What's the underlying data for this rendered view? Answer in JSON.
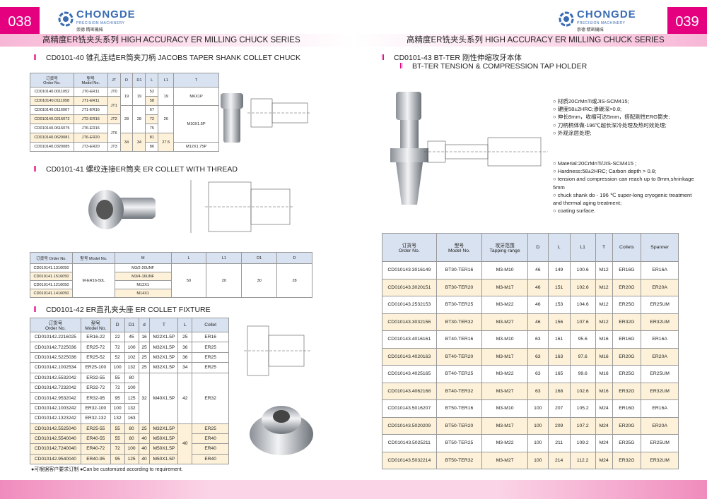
{
  "left_page": {
    "page_number": "038",
    "logo": {
      "brand": "CHONGDE",
      "tagline": "PRECISION MACHINERY",
      "chinese": "崇德 精密機械"
    },
    "series_title": "高精度ER铣夹头系列  HIGH ACCURACY ER MILLING CHUCK SERIES",
    "sections": [
      {
        "title": "CD0101-40  锥孔连结ER筒夹刀柄  JACOBS TAPER SHANK COLLET CHUCK",
        "table": {
          "headers": [
            "订货号\nOrder No.",
            "型号\nModel No.",
            "JT",
            "D",
            "D1",
            "L",
            "L1",
            "T"
          ],
          "rows": [
            [
              "CD010140.0011052",
              "JT0-ER11",
              "JT0",
              "19",
              "19",
              "52",
              "19",
              "M6X1P"
            ],
            [
              "CD010140.0111058",
              "JT1-ER11",
              "JT1",
              "58"
            ],
            [
              "CD010140.0116067",
              "JT1-ER16",
              "28",
              "28",
              "67",
              "26",
              "M10X1.5P"
            ],
            [
              "CD010140.0216072",
              "JT2-ER16",
              "JT2",
              "72"
            ],
            [
              "CD010140.0616075",
              "JT6-ER16",
              "JT6",
              "75"
            ],
            [
              "CD010140.0620081",
              "JT6-ER20",
              "34",
              "34",
              "81",
              "27.5"
            ],
            [
              "CD010140.0320085",
              "JT3-ER20",
              "JT3",
              "86",
              "M12X1.75P"
            ]
          ]
        }
      },
      {
        "title": "CD0101-41  螺纹连接ER筒夹  ER COLLET WITH THREAD",
        "table": {
          "headers": [
            "订货号 Order No.",
            "型号 Model No.",
            "M",
            "L",
            "L1",
            "D1",
            "D"
          ],
          "rows": [
            [
              "CD010141.1316050",
              "M-ER16-50L",
              "M3/2-20UNF",
              "50",
              "20",
              "30",
              "28"
            ],
            [
              "CD010141.1516050",
              "M3/4-16UNF"
            ],
            [
              "CD010141.1216050",
              "M12X1"
            ],
            [
              "CD010141.1416050",
              "M14X1"
            ]
          ]
        }
      },
      {
        "title": "CD0101-42  ER直孔夹头座  ER COLLET FIXTURE",
        "table": {
          "headers": [
            "订货号\nOrder No.",
            "型号\nModel No.",
            "D",
            "D1",
            "d",
            "T",
            "L",
            "Collet"
          ],
          "rows": [
            [
              "CD010142.2216025",
              "ER16-22",
              "22",
              "45",
              "16",
              "M22X1.5P",
              "25",
              "ER16"
            ],
            [
              "CD010142.7225036",
              "ER25-72",
              "72",
              "100",
              "25",
              "M32X1.5P",
              "36",
              "ER25"
            ],
            [
              "CD010142.5225036",
              "ER25-52",
              "52",
              "102",
              "25",
              "M32X1.5P",
              "36",
              "ER25"
            ],
            [
              "CD010142.1002534",
              "ER25-100",
              "100",
              "132",
              "25",
              "M32X1.5P",
              "34",
              "ER25"
            ],
            [
              "CD010142.5532042",
              "ER32-55",
              "55",
              "80",
              "32",
              "M40X1.5P",
              "42",
              "ER32"
            ],
            [
              "CD010142.7232042",
              "ER32-72",
              "72",
              "100"
            ],
            [
              "CD010142.9532042",
              "ER32-95",
              "95",
              "125"
            ],
            [
              "CD010142.1003242",
              "ER32-100",
              "100",
              "132"
            ],
            [
              "CD010142.1323242",
              "ER32-132",
              "132",
              "163"
            ],
            [
              "CD010142.5525040",
              "ER25-55",
              "55",
              "80",
              "25",
              "M32X1.5P",
              "40",
              "ER25"
            ],
            [
              "CD010142.5540040",
              "ER40-55",
              "55",
              "80",
              "40",
              "M50X1.5P",
              "ER40"
            ],
            [
              "CD010142.7240040",
              "ER40-72",
              "72",
              "100",
              "40",
              "M50X1.5P",
              "ER40"
            ],
            [
              "CD010142.9540040",
              "ER40-95",
              "95",
              "125",
              "40",
              "M50X1.5P",
              "ER40"
            ]
          ]
        }
      }
    ],
    "footnote": "●可根据客户要求订制  ●Can be customized according to requirement."
  },
  "right_page": {
    "page_number": "039",
    "logo": {
      "brand": "CHONGDE",
      "tagline": "PRECISION MACHINERY",
      "chinese": "崇德 精密機械"
    },
    "series_title": "高精度ER铣夹头系列  HIGH ACCURACY ER MILLING CHUCK SERIES",
    "section": {
      "title": "CD0101-43 BT-TER  刚性伸缩攻牙本体",
      "subtitle": "BT-TER   TENSION & COMPRESSION TAP HOLDER",
      "features_cn": [
        "材质20CrMnTi或JIS-SCM415;",
        "硬度58±2HRC;渗碳深>0.8;",
        "伸长8mm，收缩可达5mm，搭配刚性ERG筒夹;",
        "刀柄柄体做-196℃超长深冷处理及热时效处理;",
        "外观涂层处理;"
      ],
      "features_en": [
        "Material:20CrMnTi/JIS-SCM415 ;",
        "Hardness:58±2HRC;  Carbon depth > 0.8;",
        "tension and compression can reach up to 8mm,shrinkage 5mm",
        "chuck shank do - 196 ℃ super-long cryogenic treatment and thermal aging treatment;",
        "coating surface."
      ],
      "table": {
        "headers": [
          "订货号\nOrder No.",
          "型号\nModel No.",
          "攻牙范围\nTapping range",
          "D",
          "L",
          "L1",
          "T",
          "Collets",
          "Spanner"
        ],
        "rows": [
          [
            "CD010143.3016149",
            "BT30-TER16",
            "M3-M10",
            "46",
            "149",
            "100.6",
            "M12",
            "ER16G",
            "ER16A"
          ],
          [
            "CD010143.3020151",
            "BT30-TER20",
            "M3-M17",
            "46",
            "151",
            "102.6",
            "M12",
            "ER20G",
            "ER20A"
          ],
          [
            "CD010143.2532153",
            "BT30-TER25",
            "M3-M22",
            "46",
            "153",
            "104.6",
            "M12",
            "ER25G",
            "ER25UM"
          ],
          [
            "CD010143.3032156",
            "BT30-TER32",
            "M3-M27",
            "46",
            "156",
            "107.6",
            "M12",
            "ER32G",
            "ER32UM"
          ],
          [
            "CD010143.4016161",
            "BT40-TER16",
            "M3-M10",
            "63",
            "161",
            "95.6",
            "M16",
            "ER16G",
            "ER16A"
          ],
          [
            "CD010143.4020163",
            "BT40-TER20",
            "M3-M17",
            "63",
            "163",
            "97.6",
            "M16",
            "ER20G",
            "ER20A"
          ],
          [
            "CD010143.4025165",
            "BT40-TER25",
            "M3-M22",
            "63",
            "165",
            "99.6",
            "M16",
            "ER25G",
            "ER25UM"
          ],
          [
            "CD010143.4062168",
            "BT40-TER32",
            "M3-M27",
            "63",
            "168",
            "102.6",
            "M16",
            "ER32G",
            "ER32UM"
          ],
          [
            "CD010143.5016207",
            "BT50-TER16",
            "M3-M10",
            "100",
            "207",
            "105.2",
            "M24",
            "ER16G",
            "ER16A"
          ],
          [
            "CD010143.5020209",
            "BT50-TER20",
            "M3-M17",
            "100",
            "209",
            "107.2",
            "M24",
            "ER20G",
            "ER20A"
          ],
          [
            "CD010143.5025211",
            "BT50-TER25",
            "M3-M22",
            "100",
            "211",
            "109.2",
            "M24",
            "ER25G",
            "ER25UM"
          ],
          [
            "CD010143.5032214",
            "BT50-TER32",
            "M3-M27",
            "100",
            "214",
            "112.2",
            "M24",
            "ER32G",
            "ER32UM"
          ]
        ]
      }
    }
  }
}
